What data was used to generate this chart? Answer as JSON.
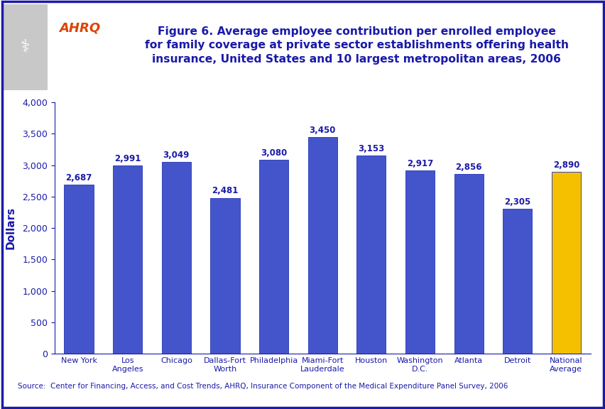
{
  "categories": [
    "New York",
    "Los\nAngeles",
    "Chicago",
    "Dallas-Fort\nWorth",
    "Philadelphia",
    "Miami-Fort\nLauderdale",
    "Houston",
    "Washington\nD.C.",
    "Atlanta",
    "Detroit",
    "National\nAverage"
  ],
  "values": [
    2687,
    2991,
    3049,
    2481,
    3080,
    3450,
    3153,
    2917,
    2856,
    2305,
    2890
  ],
  "bar_colors": [
    "#4455cc",
    "#4455cc",
    "#4455cc",
    "#4455cc",
    "#4455cc",
    "#4455cc",
    "#4455cc",
    "#4455cc",
    "#4455cc",
    "#4455cc",
    "#f5c000"
  ],
  "bar_edge_color": "#3344bb",
  "title_line1": "Figure 6. Average employee contribution per enrolled employee",
  "title_line2": "for family coverage at private sector establishments offering health",
  "title_line3": "insurance, United States and 10 largest metropolitan areas, 2006",
  "ylabel": "Dollars",
  "ylim": [
    0,
    4000
  ],
  "yticks": [
    0,
    500,
    1000,
    1500,
    2000,
    2500,
    3000,
    3500,
    4000
  ],
  "source_text": "Source:  Center for Financing, Access, and Cost Trends, AHRQ, Insurance Component of the Medical Expenditure Panel Survey, 2006",
  "title_color": "#1a1aaa",
  "label_color": "#1a1aaa",
  "axis_label_color": "#1a1aaa",
  "tick_color": "#1a1aaa",
  "source_color": "#1a1aaa",
  "background_color": "#ffffff",
  "border_color": "#1a1aaa",
  "header_bar_color": "#1a1aaa",
  "logo_bg_color": "#1a9aaa",
  "bar_value_fontsize": 8.5,
  "title_fontsize": 11.2,
  "ylabel_fontsize": 11,
  "xtick_fontsize": 8.0,
  "ytick_fontsize": 9,
  "source_fontsize": 7.5,
  "bar_width": 0.6
}
